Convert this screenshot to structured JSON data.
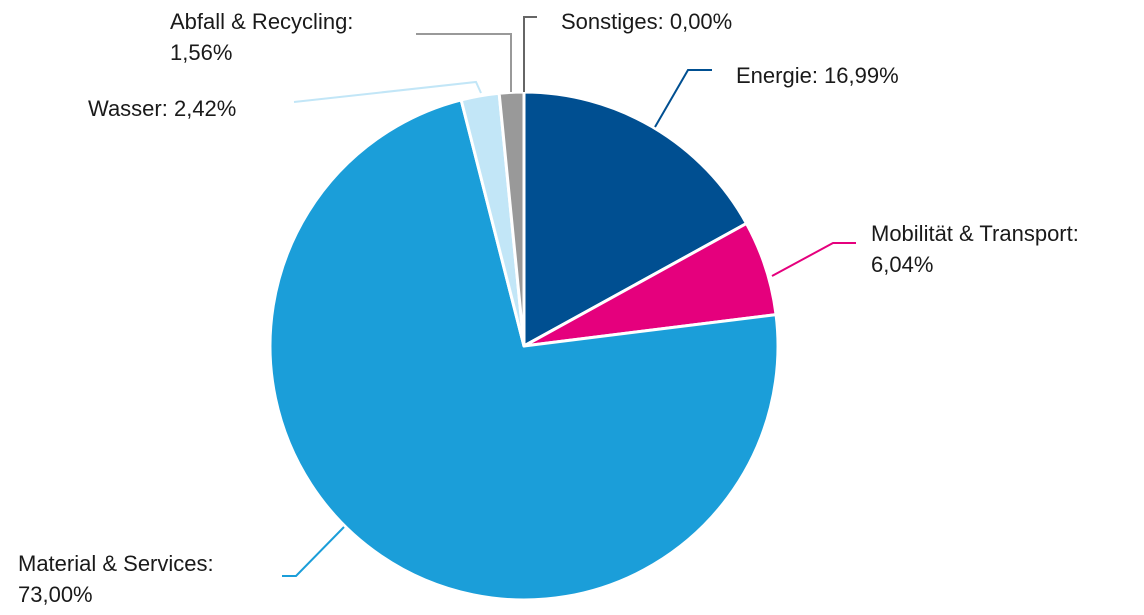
{
  "chart_data": {
    "type": "pie",
    "title": "",
    "slices": [
      {
        "name": "Energie",
        "value": 16.99,
        "label": "Energie: 16,99%",
        "color": "#004f91"
      },
      {
        "name": "Mobilität & Transport",
        "value": 6.04,
        "label_line1": "Mobilität & Transport:",
        "label_line2": "6,04%",
        "color": "#e5007d"
      },
      {
        "name": "Material & Services",
        "value": 73.0,
        "label_line1": "Material & Services:",
        "label_line2": "73,00%",
        "color": "#1b9ed9"
      },
      {
        "name": "Wasser",
        "value": 2.42,
        "label": "Wasser: 2,42%",
        "color": "#c2e6f7"
      },
      {
        "name": "Abfall & Recycling",
        "value": 1.56,
        "label_line1": "Abfall & Recycling:",
        "label_line2": "1,56%",
        "color": "#999999"
      },
      {
        "name": "Sonstiges",
        "value": 0.0,
        "label": "Sonstiges: 0,00%",
        "color": "#666666"
      }
    ],
    "start": "12 o'clock",
    "direction": "clockwise"
  }
}
